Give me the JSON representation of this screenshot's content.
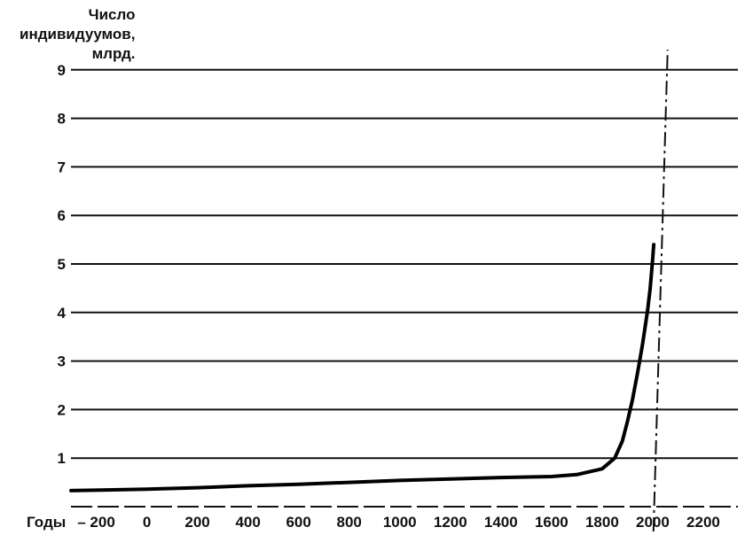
{
  "chart_data": {
    "type": "line",
    "title": "",
    "ylabel": "Число\nиндивидуумов,\nмлрд.",
    "xlabel": "Годы",
    "xlim": [
      -300,
      2400
    ],
    "ylim": [
      0,
      9
    ],
    "x_ticks": [
      -200,
      0,
      200,
      400,
      600,
      800,
      1000,
      1200,
      1400,
      1600,
      1800,
      2000,
      2200
    ],
    "x_tick_labels": [
      "– 200",
      "0",
      "200",
      "400",
      "600",
      "800",
      "1000",
      "1200",
      "1400",
      "1600",
      "1800",
      "2000",
      "2200"
    ],
    "y_ticks": [
      1,
      2,
      3,
      4,
      5,
      6,
      7,
      8,
      9
    ],
    "y_tick_labels": [
      "1",
      "2",
      "3",
      "4",
      "5",
      "6",
      "7",
      "8",
      "9"
    ],
    "grid": "horizontal",
    "asymptote_x": 2010,
    "series": [
      {
        "x": [
          -300,
          0,
          200,
          400,
          600,
          800,
          1000,
          1200,
          1400,
          1600,
          1700,
          1800,
          1850,
          1880,
          1900,
          1920,
          1940,
          1950,
          1960,
          1970,
          1980,
          1990,
          2000,
          2004
        ],
        "values": [
          0.33,
          0.36,
          0.39,
          0.43,
          0.46,
          0.5,
          0.54,
          0.57,
          0.6,
          0.62,
          0.66,
          0.78,
          1.0,
          1.35,
          1.75,
          2.2,
          2.75,
          3.05,
          3.35,
          3.7,
          4.05,
          4.5,
          5.1,
          5.4
        ]
      }
    ]
  }
}
